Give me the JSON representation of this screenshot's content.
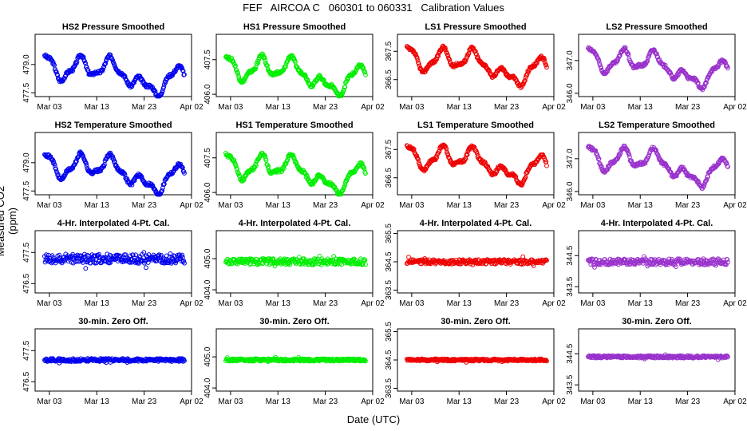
{
  "page": {
    "title": "FEF   AIRCOA C   060301 to 060331   Calibration Values",
    "ylabel": "Measured CO2 (ppm)",
    "xlabel": "Date (UTC)"
  },
  "colors": {
    "HS2": "#0000ee",
    "HS1": "#00ee00",
    "LS1": "#ee0000",
    "LS2": "#9932cc"
  },
  "chart_data": [
    {
      "type": "scatter",
      "row": 0,
      "col": 0,
      "sensor": "HS2",
      "title": "HS2 Pressure Smoothed",
      "ylim": [
        477.3,
        480.6
      ],
      "yticks": [
        477.5,
        479.0
      ],
      "xticks": [
        "Mar 03",
        "Mar 13",
        "Mar 23",
        "Apr 02"
      ],
      "xlim": [
        1,
        32
      ],
      "shape": "wave",
      "mean": 478.8,
      "amp": 1.1,
      "trend": -0.8
    },
    {
      "type": "scatter",
      "row": 0,
      "col": 1,
      "sensor": "HS1",
      "title": "HS1 Pressure Smoothed",
      "ylim": [
        405.9,
        408.6
      ],
      "yticks": [
        406.0,
        407.5
      ],
      "xticks": [
        "Mar 03",
        "Mar 13",
        "Mar 23",
        "Apr 02"
      ],
      "xlim": [
        1,
        32
      ],
      "shape": "wave",
      "mean": 407.1,
      "amp": 0.9,
      "trend": -0.6
    },
    {
      "type": "scatter",
      "row": 0,
      "col": 2,
      "sensor": "LS1",
      "title": "LS1 Pressure Smoothed",
      "ylim": [
        365.9,
        368.1
      ],
      "yticks": [
        366.5,
        367.5
      ],
      "xticks": [
        "Mar 03",
        "Mar 13",
        "Mar 23",
        "Apr 02"
      ],
      "xlim": [
        1,
        32
      ],
      "shape": "wave",
      "mean": 367.2,
      "amp": 0.7,
      "trend": -0.5
    },
    {
      "type": "scatter",
      "row": 0,
      "col": 3,
      "sensor": "LS2",
      "title": "LS2 Pressure Smoothed",
      "ylim": [
        345.9,
        347.8
      ],
      "yticks": [
        346.0,
        347.0
      ],
      "xticks": [
        "Mar 03",
        "Mar 13",
        "Mar 23",
        "Apr 02"
      ],
      "xlim": [
        1,
        32
      ],
      "shape": "wave",
      "mean": 347.0,
      "amp": 0.6,
      "trend": -0.5
    },
    {
      "type": "scatter",
      "row": 1,
      "col": 0,
      "sensor": "HS2",
      "title": "HS2 Temperature Smoothed",
      "ylim": [
        477.3,
        480.6
      ],
      "yticks": [
        477.5,
        479.0
      ],
      "xticks": [
        "Mar 03",
        "Mar 13",
        "Mar 23",
        "Apr 02"
      ],
      "xlim": [
        1,
        32
      ],
      "shape": "wave",
      "mean": 478.8,
      "amp": 1.1,
      "trend": -0.8
    },
    {
      "type": "scatter",
      "row": 1,
      "col": 1,
      "sensor": "HS1",
      "title": "HS1 Temperature Smoothed",
      "ylim": [
        405.9,
        408.6
      ],
      "yticks": [
        406.0,
        407.5
      ],
      "xticks": [
        "Mar 03",
        "Mar 13",
        "Mar 23",
        "Apr 02"
      ],
      "xlim": [
        1,
        32
      ],
      "shape": "wave",
      "mean": 407.1,
      "amp": 0.9,
      "trend": -0.6
    },
    {
      "type": "scatter",
      "row": 1,
      "col": 2,
      "sensor": "LS1",
      "title": "LS1 Temperature Smoothed",
      "ylim": [
        365.9,
        368.1
      ],
      "yticks": [
        366.5,
        367.5
      ],
      "xticks": [
        "Mar 03",
        "Mar 13",
        "Mar 23",
        "Apr 02"
      ],
      "xlim": [
        1,
        32
      ],
      "shape": "wave",
      "mean": 367.2,
      "amp": 0.7,
      "trend": -0.5
    },
    {
      "type": "scatter",
      "row": 1,
      "col": 3,
      "sensor": "LS2",
      "title": "LS2 Temperature Smoothed",
      "ylim": [
        345.9,
        347.8
      ],
      "yticks": [
        346.0,
        347.0
      ],
      "xticks": [
        "Mar 03",
        "Mar 13",
        "Mar 23",
        "Apr 02"
      ],
      "xlim": [
        1,
        32
      ],
      "shape": "wave",
      "mean": 347.0,
      "amp": 0.6,
      "trend": -0.5
    },
    {
      "type": "scatter",
      "row": 2,
      "col": 0,
      "sensor": "HS2",
      "title": "4-Hr. Interpolated 4-Pt. Cal.",
      "ylim": [
        476.2,
        478.2
      ],
      "yticks": [
        476.5,
        477.5
      ],
      "xticks": [
        "Mar 03",
        "Mar 13",
        "Mar 23",
        "Apr 02"
      ],
      "xlim": [
        1,
        32
      ],
      "shape": "flat",
      "mean": 477.3,
      "amp": 0.15,
      "trend": 0
    },
    {
      "type": "scatter",
      "row": 2,
      "col": 1,
      "sensor": "HS1",
      "title": "4-Hr. Interpolated 4-Pt. Cal.",
      "ylim": [
        403.9,
        405.9
      ],
      "yticks": [
        404.0,
        405.0
      ],
      "xticks": [
        "Mar 03",
        "Mar 13",
        "Mar 23",
        "Apr 02"
      ],
      "xlim": [
        1,
        32
      ],
      "shape": "flat",
      "mean": 404.9,
      "amp": 0.1,
      "trend": 0
    },
    {
      "type": "scatter",
      "row": 2,
      "col": 2,
      "sensor": "LS1",
      "title": "4-Hr. Interpolated 4-Pt. Cal.",
      "ylim": [
        363.4,
        365.6
      ],
      "yticks": [
        363.5,
        364.5,
        365.5
      ],
      "xticks": [
        "Mar 03",
        "Mar 13",
        "Mar 23",
        "Apr 02"
      ],
      "xlim": [
        1,
        32
      ],
      "shape": "flat",
      "mean": 364.5,
      "amp": 0.08,
      "trend": 0
    },
    {
      "type": "scatter",
      "row": 2,
      "col": 3,
      "sensor": "LS2",
      "title": "4-Hr. Interpolated 4-Pt. Cal.",
      "ylim": [
        343.3,
        345.3
      ],
      "yticks": [
        343.5,
        344.5
      ],
      "xticks": [
        "Mar 03",
        "Mar 13",
        "Mar 23",
        "Apr 02"
      ],
      "xlim": [
        1,
        32
      ],
      "shape": "flat",
      "mean": 344.3,
      "amp": 0.1,
      "trend": 0
    },
    {
      "type": "scatter",
      "row": 3,
      "col": 0,
      "sensor": "HS2",
      "title": "30-min. Zero Off.",
      "ylim": [
        476.2,
        478.2
      ],
      "yticks": [
        476.5,
        477.5
      ],
      "xticks": [
        "Mar 03",
        "Mar 13",
        "Mar 23",
        "Apr 02"
      ],
      "xlim": [
        1,
        32
      ],
      "shape": "flat",
      "mean": 477.2,
      "amp": 0.05,
      "trend": 0
    },
    {
      "type": "scatter",
      "row": 3,
      "col": 1,
      "sensor": "HS1",
      "title": "30-min. Zero Off.",
      "ylim": [
        403.9,
        405.9
      ],
      "yticks": [
        404.0,
        405.0
      ],
      "xticks": [
        "Mar 03",
        "Mar 13",
        "Mar 23",
        "Apr 02"
      ],
      "xlim": [
        1,
        32
      ],
      "shape": "flat",
      "mean": 404.9,
      "amp": 0.04,
      "trend": 0
    },
    {
      "type": "scatter",
      "row": 3,
      "col": 2,
      "sensor": "LS1",
      "title": "30-min. Zero Off.",
      "ylim": [
        363.4,
        365.6
      ],
      "yticks": [
        363.5,
        364.5,
        365.5
      ],
      "xticks": [
        "Mar 03",
        "Mar 13",
        "Mar 23",
        "Apr 02"
      ],
      "xlim": [
        1,
        32
      ],
      "shape": "flat",
      "mean": 364.5,
      "amp": 0.04,
      "trend": 0
    },
    {
      "type": "scatter",
      "row": 3,
      "col": 3,
      "sensor": "LS2",
      "title": "30-min. Zero Off.",
      "ylim": [
        343.3,
        345.3
      ],
      "yticks": [
        343.5,
        344.5
      ],
      "xticks": [
        "Mar 03",
        "Mar 13",
        "Mar 23",
        "Apr 02"
      ],
      "xlim": [
        1,
        32
      ],
      "shape": "flat",
      "mean": 344.4,
      "amp": 0.04,
      "trend": 0
    }
  ]
}
